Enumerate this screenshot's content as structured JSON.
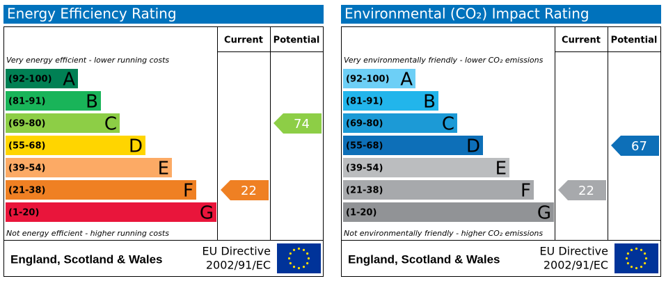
{
  "panels": [
    {
      "title": "Energy Efficiency Rating",
      "columns": [
        "Current",
        "Potential"
      ],
      "top_note": "Very energy efficient - lower running costs",
      "bottom_note": "Not energy efficient - higher running costs",
      "bands": [
        {
          "range": "(92-100)",
          "letter": "A",
          "color": "#008054"
        },
        {
          "range": "(81-91)",
          "letter": "B",
          "color": "#19b459"
        },
        {
          "range": "(69-80)",
          "letter": "C",
          "color": "#8dce46"
        },
        {
          "range": "(55-68)",
          "letter": "D",
          "color": "#ffd500"
        },
        {
          "range": "(39-54)",
          "letter": "E",
          "color": "#fcaa65"
        },
        {
          "range": "(21-38)",
          "letter": "F",
          "color": "#ef8023"
        },
        {
          "range": "(1-20)",
          "letter": "G",
          "color": "#e9153b"
        }
      ],
      "current": 22,
      "potential": 74,
      "footer": {
        "region": "England, Scotland & Wales",
        "directive": [
          "EU Directive",
          "2002/91/EC"
        ]
      }
    },
    {
      "title": "Environmental (CO₂) Impact Rating",
      "columns": [
        "Current",
        "Potential"
      ],
      "top_note": "Very environmentally friendly - lower CO₂ emissions",
      "bottom_note": "Not environmentally friendly - higher CO₂ emissions",
      "bands": [
        {
          "range": "(92-100)",
          "letter": "A",
          "color": "#6dcff6"
        },
        {
          "range": "(81-91)",
          "letter": "B",
          "color": "#22b5eb"
        },
        {
          "range": "(69-80)",
          "letter": "C",
          "color": "#1c9ad6"
        },
        {
          "range": "(55-68)",
          "letter": "D",
          "color": "#0d6fb8"
        },
        {
          "range": "(39-54)",
          "letter": "E",
          "color": "#bbbdbf"
        },
        {
          "range": "(21-38)",
          "letter": "F",
          "color": "#a7a9ac"
        },
        {
          "range": "(1-20)",
          "letter": "G",
          "color": "#919396"
        }
      ],
      "current": 22,
      "potential": 67,
      "footer": {
        "region": "England, Scotland & Wales",
        "directive": [
          "EU Directive",
          "2002/91/EC"
        ]
      }
    }
  ]
}
